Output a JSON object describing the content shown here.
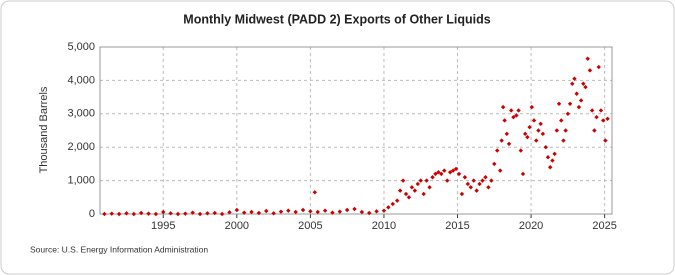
{
  "chart_data": {
    "type": "scatter",
    "title": "Monthly Midwest (PADD 2) Exports of Other Liquids",
    "y_label": "Thousand Barrels",
    "source": "Source: U.S. Energy Information Administration",
    "color": "#cc0000",
    "grid": true,
    "xlim": [
      1990.7,
      2025.5
    ],
    "xticks": [
      1995,
      2000,
      2005,
      2010,
      2015,
      2020,
      2025
    ],
    "ylim": [
      0,
      5000
    ],
    "yticks": [
      0,
      {
        "value": 1000,
        "label": "1,000"
      },
      {
        "value": 2000,
        "label": "2,000"
      },
      {
        "value": 3000,
        "label": "3,000"
      },
      {
        "value": 4000,
        "label": "4,000"
      },
      {
        "value": 5000,
        "label": "5,000"
      }
    ],
    "x": [
      1991.0,
      1991.5,
      1992.0,
      1992.5,
      1993.0,
      1993.5,
      1994.0,
      1994.5,
      1995.0,
      1995.5,
      1996.0,
      1996.5,
      1997.0,
      1997.5,
      1998.0,
      1998.5,
      1999.0,
      1999.5,
      2000.0,
      2000.5,
      2001.0,
      2001.5,
      2002.0,
      2002.5,
      2003.0,
      2003.5,
      2004.0,
      2004.5,
      2005.0,
      2005.3,
      2005.5,
      2006.0,
      2006.5,
      2007.0,
      2007.5,
      2008.0,
      2008.5,
      2009.0,
      2009.5,
      2010.0,
      2010.3,
      2010.6,
      2010.9,
      2011.1,
      2011.3,
      2011.5,
      2011.7,
      2011.9,
      2012.1,
      2012.3,
      2012.5,
      2012.7,
      2012.9,
      2013.1,
      2013.3,
      2013.5,
      2013.7,
      2013.9,
      2014.1,
      2014.3,
      2014.5,
      2014.7,
      2014.9,
      2015.1,
      2015.3,
      2015.5,
      2015.7,
      2015.9,
      2016.1,
      2016.3,
      2016.5,
      2016.7,
      2016.9,
      2017.1,
      2017.3,
      2017.5,
      2017.7,
      2017.9,
      2018.0,
      2018.1,
      2018.2,
      2018.35,
      2018.5,
      2018.65,
      2018.8,
      2019.0,
      2019.15,
      2019.3,
      2019.45,
      2019.6,
      2019.75,
      2019.9,
      2020.05,
      2020.2,
      2020.35,
      2020.5,
      2020.65,
      2020.8,
      2021.0,
      2021.15,
      2021.3,
      2021.45,
      2021.6,
      2021.75,
      2021.9,
      2022.05,
      2022.2,
      2022.35,
      2022.5,
      2022.65,
      2022.8,
      2022.95,
      2023.1,
      2023.25,
      2023.4,
      2023.55,
      2023.7,
      2023.85,
      2024.0,
      2024.15,
      2024.3,
      2024.45,
      2024.6,
      2024.75,
      2024.9,
      2025.05,
      2025.2
    ],
    "values": [
      0,
      10,
      0,
      20,
      0,
      30,
      10,
      0,
      60,
      20,
      0,
      10,
      40,
      0,
      20,
      30,
      0,
      50,
      120,
      40,
      60,
      30,
      90,
      20,
      70,
      100,
      60,
      120,
      80,
      650,
      60,
      100,
      40,
      70,
      120,
      150,
      60,
      30,
      80,
      100,
      200,
      300,
      400,
      700,
      1000,
      600,
      500,
      800,
      700,
      900,
      1000,
      600,
      1000,
      800,
      1100,
      1200,
      1250,
      1200,
      1300,
      1000,
      1250,
      1300,
      1350,
      1200,
      600,
      1100,
      900,
      800,
      1000,
      700,
      900,
      1000,
      1100,
      800,
      1000,
      1500,
      1900,
      1300,
      2200,
      3200,
      2800,
      2400,
      2100,
      3100,
      2900,
      2950,
      3100,
      1900,
      1200,
      2400,
      2300,
      2600,
      3200,
      2800,
      2200,
      2500,
      2700,
      2400,
      2000,
      1700,
      1400,
      1600,
      1800,
      2500,
      3300,
      2800,
      2200,
      2500,
      3000,
      3300,
      3900,
      4050,
      3600,
      3200,
      3400,
      3900,
      3800,
      4650,
      4300,
      3100,
      2500,
      2900,
      4400,
      3100,
      2800,
      2200,
      2850
    ]
  }
}
